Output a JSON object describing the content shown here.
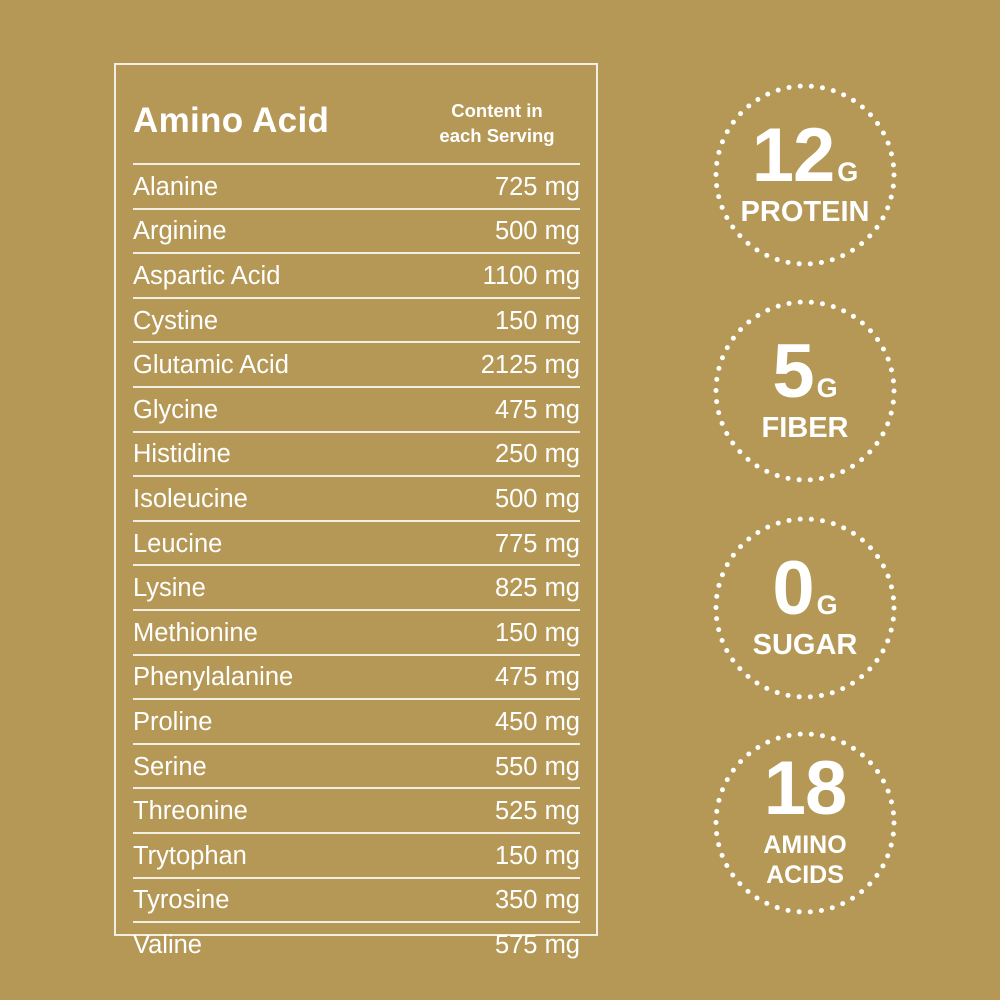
{
  "colors": {
    "background": "#b59856",
    "foreground": "#ffffff"
  },
  "table": {
    "title": "Amino Acid",
    "content_header_line1": "Content in",
    "content_header_line2": "each Serving",
    "rows": [
      {
        "name": "Alanine",
        "amount": "725 mg"
      },
      {
        "name": "Arginine",
        "amount": "500 mg"
      },
      {
        "name": "Aspartic Acid",
        "amount": "1100 mg"
      },
      {
        "name": "Cystine",
        "amount": "150 mg"
      },
      {
        "name": "Glutamic Acid",
        "amount": "2125 mg"
      },
      {
        "name": "Glycine",
        "amount": "475 mg"
      },
      {
        "name": "Histidine",
        "amount": "250 mg"
      },
      {
        "name": "Isoleucine",
        "amount": "500 mg"
      },
      {
        "name": "Leucine",
        "amount": "775 mg"
      },
      {
        "name": "Lysine",
        "amount": "825 mg"
      },
      {
        "name": "Methionine",
        "amount": "150 mg"
      },
      {
        "name": "Phenylalanine",
        "amount": "475 mg"
      },
      {
        "name": "Proline",
        "amount": "450 mg"
      },
      {
        "name": "Serine",
        "amount": "550 mg"
      },
      {
        "name": "Threonine",
        "amount": "525 mg"
      },
      {
        "name": "Trytophan",
        "amount": "150 mg"
      },
      {
        "name": "Tyrosine",
        "amount": "350 mg"
      },
      {
        "name": "Valine",
        "amount": "575 mg"
      }
    ]
  },
  "badges": [
    {
      "value": "12",
      "unit": "G",
      "label": "PROTEIN"
    },
    {
      "value": "5",
      "unit": "G",
      "label": "FIBER"
    },
    {
      "value": "0",
      "unit": "G",
      "label": "SUGAR"
    },
    {
      "value": "18",
      "label_line1": "AMINO",
      "label_line2": "ACIDS"
    }
  ]
}
